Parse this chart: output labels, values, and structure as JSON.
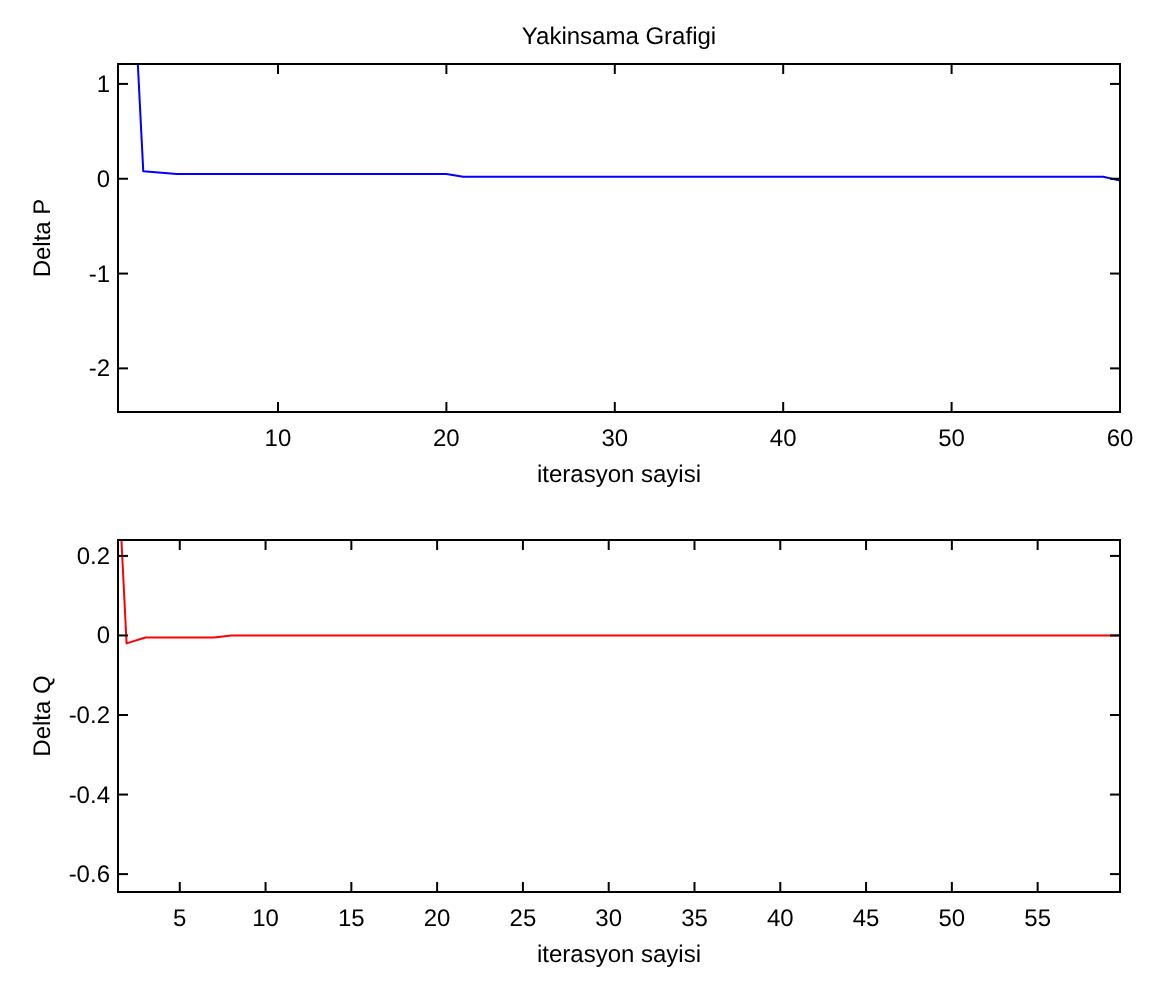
{
  "chart_data": [
    {
      "type": "line",
      "title": "Yakinsama Grafigi",
      "xlabel": "iterasyon sayisi",
      "ylabel": "Delta P",
      "xlim": [
        0.5,
        60
      ],
      "xticks": [
        10,
        20,
        30,
        40,
        50,
        60
      ],
      "ylim": [
        -2.46,
        1.21
      ],
      "yticks": [
        -2,
        -1,
        0,
        1
      ],
      "series": [
        {
          "color": "#0000ff",
          "x": [
            1.68,
            2,
            4,
            20,
            21,
            59,
            60
          ],
          "values": [
            1.2,
            0.08,
            0.05,
            0.05,
            0.02,
            0.02,
            -0.02
          ]
        }
      ]
    },
    {
      "type": "line",
      "xlabel": "iterasyon sayisi",
      "ylabel": "Delta Q",
      "xlim": [
        1.4,
        59.8
      ],
      "xticks": [
        5,
        10,
        15,
        20,
        25,
        30,
        35,
        40,
        45,
        50,
        55
      ],
      "ylim": [
        -0.645,
        0.24
      ],
      "yticks": [
        -0.6,
        -0.4,
        -0.2,
        0,
        0.2
      ],
      "series": [
        {
          "color": "#ff0000",
          "x": [
            1.6,
            1.9,
            3,
            7,
            8,
            59.8
          ],
          "values": [
            0.24,
            -0.02,
            -0.005,
            -0.005,
            0,
            0
          ]
        }
      ]
    }
  ]
}
